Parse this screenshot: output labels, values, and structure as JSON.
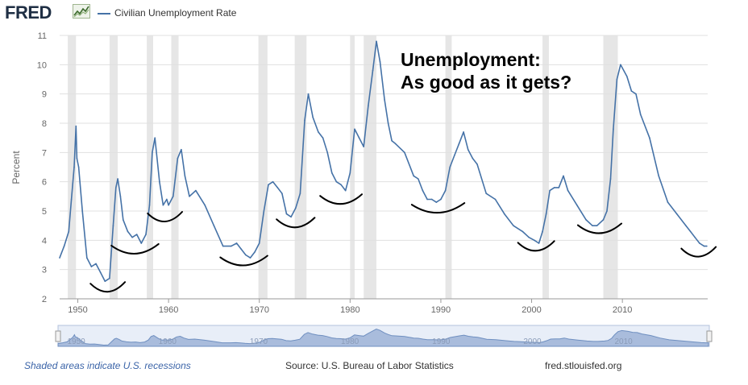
{
  "header": {
    "logo_text": "FRED",
    "logo_icon": "trend-chart-icon",
    "legend_label": "Civilian Unemployment Rate",
    "series_color": "#4572a7"
  },
  "annotation": {
    "line1": "Unemployment:",
    "line2": "As good as it gets?"
  },
  "footer": {
    "recession_note": "Shaded areas indicate U.S. recessions",
    "source": "Source: U.S. Bureau of Labor Statistics",
    "site": "fred.stlouisfed.org"
  },
  "chart_data": {
    "type": "line",
    "title": "",
    "xlabel": "",
    "ylabel": "Percent",
    "xlim": [
      1948,
      2019.4
    ],
    "ylim": [
      2,
      11
    ],
    "yticks": [
      "2",
      "3",
      "4",
      "5",
      "6",
      "7",
      "8",
      "9",
      "10",
      "11"
    ],
    "xticks": [
      "1950",
      "1960",
      "1970",
      "1980",
      "1990",
      "2000",
      "2010"
    ],
    "grid": "horizontal",
    "legend": "top-left",
    "recession_color": "#e6e6e6",
    "recessions": [
      [
        1948.9,
        1949.8
      ],
      [
        1953.5,
        1954.4
      ],
      [
        1957.6,
        1958.3
      ],
      [
        1960.3,
        1961.1
      ],
      [
        1969.9,
        1970.9
      ],
      [
        1973.9,
        1975.2
      ],
      [
        1980.0,
        1980.5
      ],
      [
        1981.5,
        1982.9
      ],
      [
        1990.5,
        1991.2
      ],
      [
        2001.2,
        2001.9
      ],
      [
        2007.9,
        2009.5
      ]
    ],
    "series": [
      {
        "name": "Civilian Unemployment Rate",
        "x": [
          1948.0,
          1948.5,
          1949.0,
          1949.3,
          1949.6,
          1949.8,
          1949.9,
          1950.1,
          1950.5,
          1951.0,
          1951.5,
          1952.0,
          1952.5,
          1953.0,
          1953.5,
          1953.9,
          1954.2,
          1954.4,
          1954.7,
          1955.0,
          1955.5,
          1956.0,
          1956.5,
          1957.0,
          1957.5,
          1957.9,
          1958.2,
          1958.5,
          1959.0,
          1959.4,
          1959.8,
          1960.0,
          1960.5,
          1961.0,
          1961.4,
          1961.8,
          1962.3,
          1963.0,
          1964.0,
          1965.0,
          1966.0,
          1966.9,
          1967.5,
          1968.0,
          1968.5,
          1969.0,
          1969.5,
          1970.0,
          1970.5,
          1971.0,
          1971.5,
          1972.0,
          1972.5,
          1973.0,
          1973.5,
          1974.0,
          1974.5,
          1975.0,
          1975.4,
          1975.9,
          1976.5,
          1977.0,
          1977.5,
          1978.0,
          1978.5,
          1979.0,
          1979.5,
          1980.0,
          1980.5,
          1981.0,
          1981.5,
          1982.0,
          1982.5,
          1982.9,
          1983.3,
          1983.8,
          1984.2,
          1984.6,
          1985.0,
          1986.0,
          1987.0,
          1987.5,
          1988.0,
          1988.5,
          1989.0,
          1989.5,
          1990.0,
          1990.5,
          1991.0,
          1991.5,
          1992.0,
          1992.5,
          1993.0,
          1993.5,
          1994.0,
          1995.0,
          1996.0,
          1997.0,
          1998.0,
          1999.0,
          1999.7,
          2000.3,
          2000.8,
          2001.2,
          2001.6,
          2002.0,
          2002.5,
          2003.0,
          2003.5,
          2004.0,
          2005.0,
          2006.0,
          2006.7,
          2007.2,
          2007.9,
          2008.3,
          2008.7,
          2009.0,
          2009.4,
          2009.8,
          2010.5,
          2011.0,
          2011.5,
          2012.0,
          2013.0,
          2014.0,
          2015.0,
          2016.0,
          2017.0,
          2017.5,
          2018.0,
          2018.5,
          2019.0,
          2019.3
        ],
        "values": [
          3.4,
          3.8,
          4.3,
          5.4,
          6.5,
          7.9,
          6.8,
          6.5,
          5.0,
          3.4,
          3.1,
          3.2,
          2.9,
          2.6,
          2.7,
          4.5,
          5.8,
          6.1,
          5.5,
          4.7,
          4.3,
          4.1,
          4.2,
          3.9,
          4.2,
          5.2,
          7.0,
          7.5,
          6.0,
          5.2,
          5.4,
          5.2,
          5.5,
          6.8,
          7.1,
          6.2,
          5.5,
          5.7,
          5.2,
          4.5,
          3.8,
          3.8,
          3.9,
          3.7,
          3.5,
          3.4,
          3.6,
          3.9,
          5.0,
          5.9,
          6.0,
          5.8,
          5.6,
          4.9,
          4.8,
          5.1,
          5.6,
          8.1,
          9.0,
          8.2,
          7.7,
          7.5,
          7.0,
          6.3,
          6.0,
          5.9,
          5.7,
          6.3,
          7.8,
          7.5,
          7.2,
          8.6,
          9.8,
          10.8,
          10.1,
          8.8,
          8.0,
          7.4,
          7.3,
          7.0,
          6.2,
          6.1,
          5.7,
          5.4,
          5.4,
          5.3,
          5.4,
          5.7,
          6.5,
          6.9,
          7.3,
          7.7,
          7.1,
          6.8,
          6.6,
          5.6,
          5.4,
          4.9,
          4.5,
          4.3,
          4.1,
          4.0,
          3.9,
          4.3,
          4.9,
          5.7,
          5.8,
          5.8,
          6.2,
          5.7,
          5.2,
          4.7,
          4.5,
          4.5,
          4.7,
          5.0,
          6.1,
          7.8,
          9.5,
          10.0,
          9.6,
          9.1,
          9.0,
          8.3,
          7.5,
          6.2,
          5.3,
          4.9,
          4.5,
          4.3,
          4.1,
          3.9,
          3.8,
          3.8
        ]
      }
    ],
    "navigator": {
      "xticks": [
        "1950",
        "1960",
        "1970",
        "1980",
        "1990",
        "2000",
        "2010"
      ]
    }
  }
}
